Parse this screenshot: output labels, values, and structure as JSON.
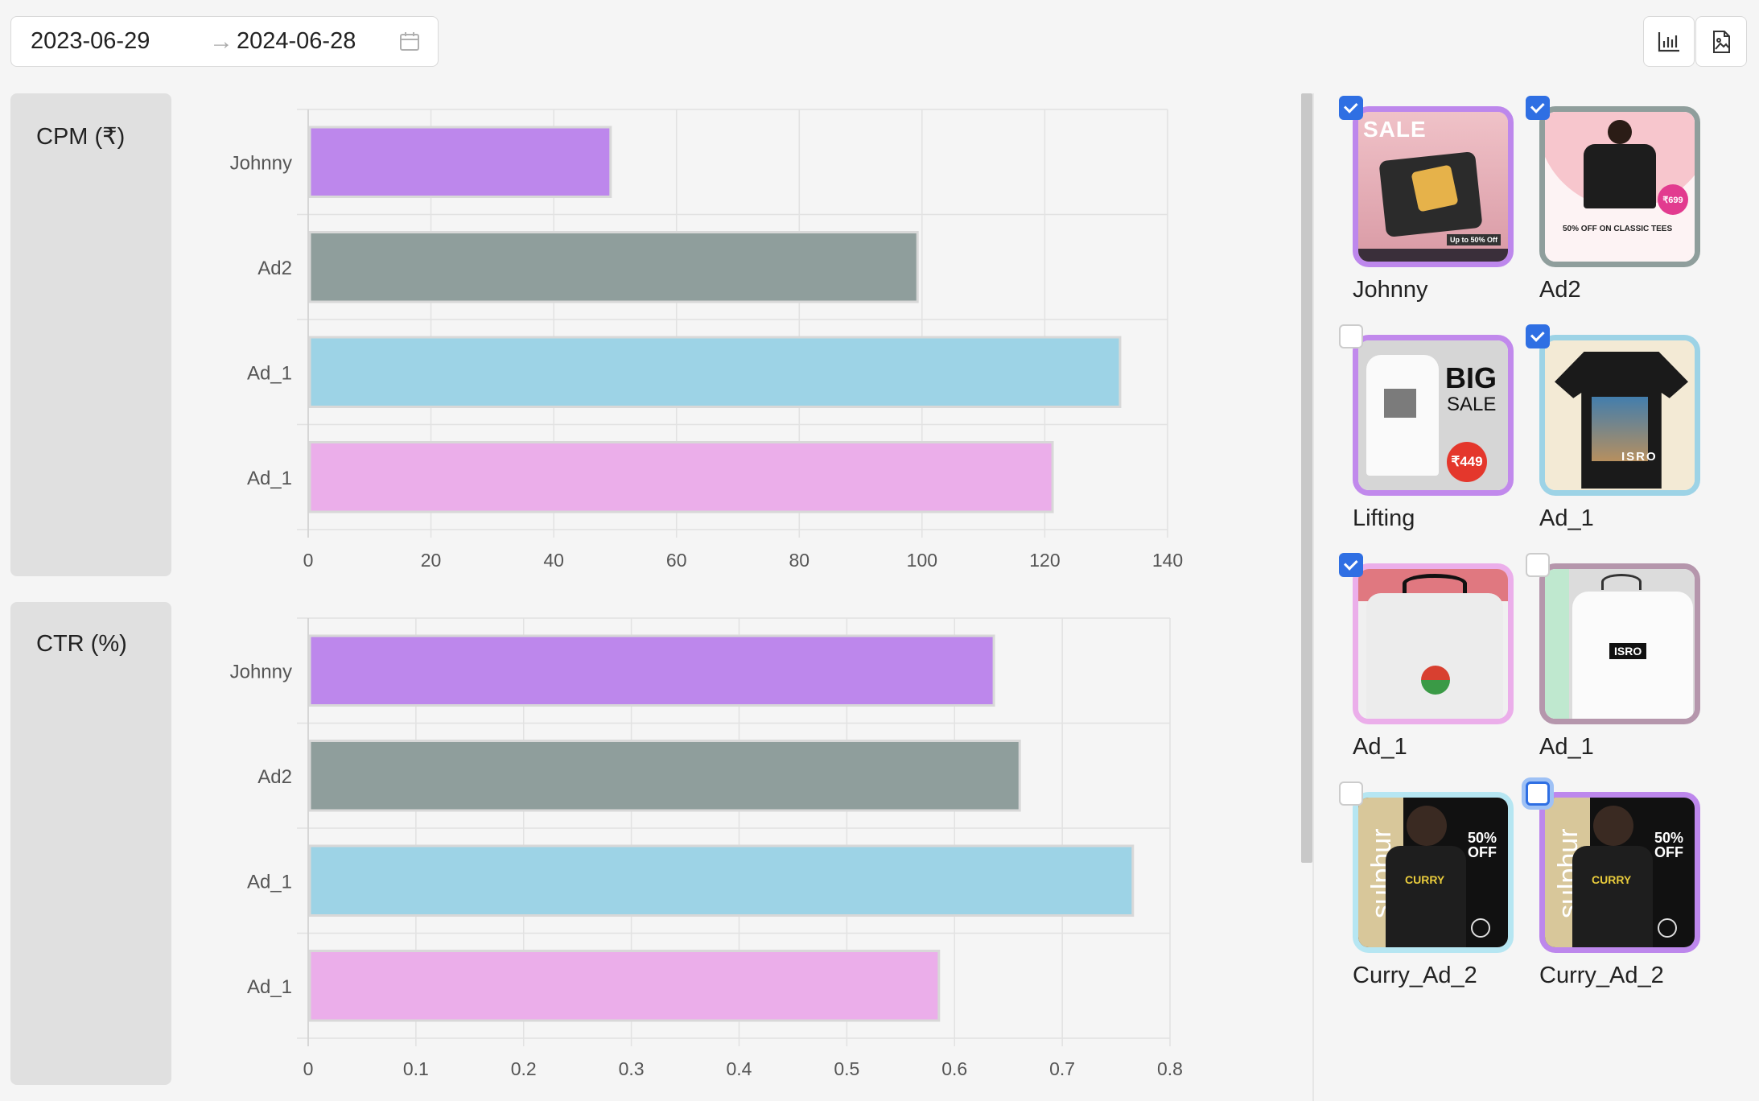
{
  "date_range": {
    "start": "2023-06-29",
    "end": "2024-06-28"
  },
  "toolbar": {
    "chart_icon": "bar-chart-icon",
    "export_icon": "file-image-icon"
  },
  "panels": [
    {
      "label": "CPM (₹)"
    },
    {
      "label": "CTR (%)"
    }
  ],
  "chart_data": [
    {
      "type": "bar",
      "orientation": "horizontal",
      "categories": [
        "Johnny",
        "Ad2",
        "Ad_1",
        "Ad_1"
      ],
      "values": [
        49,
        99,
        132,
        121
      ],
      "colors": [
        "#bd87ec",
        "#8f9e9c",
        "#9dd3e6",
        "#ebaeea"
      ],
      "xlim": [
        0,
        140
      ],
      "xticks": [
        "0",
        "20",
        "40",
        "60",
        "80",
        "100",
        "120",
        "140"
      ],
      "grid": true
    },
    {
      "type": "bar",
      "orientation": "horizontal",
      "categories": [
        "Johnny",
        "Ad2",
        "Ad_1",
        "Ad_1"
      ],
      "values": [
        0.635,
        0.659,
        0.764,
        0.584
      ],
      "colors": [
        "#bd87ec",
        "#8f9e9c",
        "#9dd3e6",
        "#ebaeea"
      ],
      "xlim": [
        0,
        0.8
      ],
      "xticks": [
        "0",
        "0.1",
        "0.2",
        "0.3",
        "0.4",
        "0.5",
        "0.6",
        "0.7",
        "0.8"
      ],
      "grid": true
    }
  ],
  "ads": [
    {
      "name": "Johnny",
      "checked": true,
      "border": "#bd87ec",
      "art": "sale",
      "thumb_text": [
        "SALE",
        "Up to 50% Off"
      ]
    },
    {
      "name": "Ad2",
      "checked": true,
      "border": "#8f9e9c",
      "art": "classic",
      "thumb_text": [
        "₹699",
        "50% OFF ON CLASSIC TEES"
      ]
    },
    {
      "name": "Lifting",
      "checked": false,
      "border": "#c189ec",
      "art": "big",
      "thumb_text": [
        "BIG",
        "SALE",
        "₹449"
      ]
    },
    {
      "name": "Ad_1",
      "checked": true,
      "border": "#9dd3e6",
      "art": "isro",
      "thumb_text": [
        "ISRO"
      ]
    },
    {
      "name": "Ad_1",
      "checked": true,
      "border": "#ebaeea",
      "art": "rocket",
      "thumb_text": []
    },
    {
      "name": "Ad_1",
      "checked": false,
      "border": "#b596ac",
      "art": "isro2",
      "thumb_text": [
        "ISRO"
      ]
    },
    {
      "name": "Curry_Ad_2",
      "checked": false,
      "border": "#b6e6f2",
      "art": "curry",
      "thumb_text": [
        "50%",
        "OFF",
        "CURRY"
      ]
    },
    {
      "name": "Curry_Ad_2",
      "checked": false,
      "focused": true,
      "border": "#bd87ec",
      "art": "curry",
      "thumb_text": [
        "50%",
        "OFF",
        "CURRY"
      ]
    }
  ]
}
